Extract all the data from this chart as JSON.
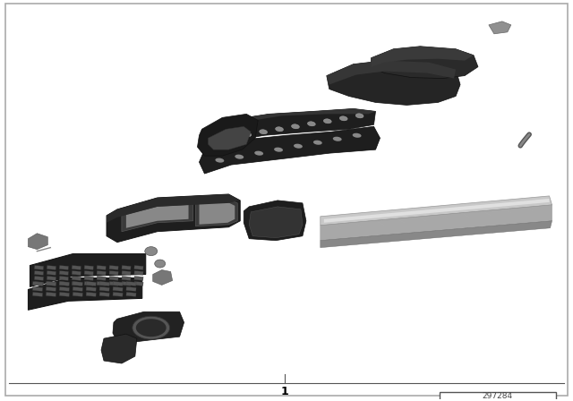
{
  "background_color": "#ffffff",
  "border_color": "#888888",
  "part_number_label": "1",
  "diagram_number": "297284",
  "dark": "#2a2a2a",
  "mid": "#555555",
  "light": "#999999",
  "sill_top": "#b0b0b0",
  "sill_mid": "#888888",
  "sill_bot": "#606060"
}
